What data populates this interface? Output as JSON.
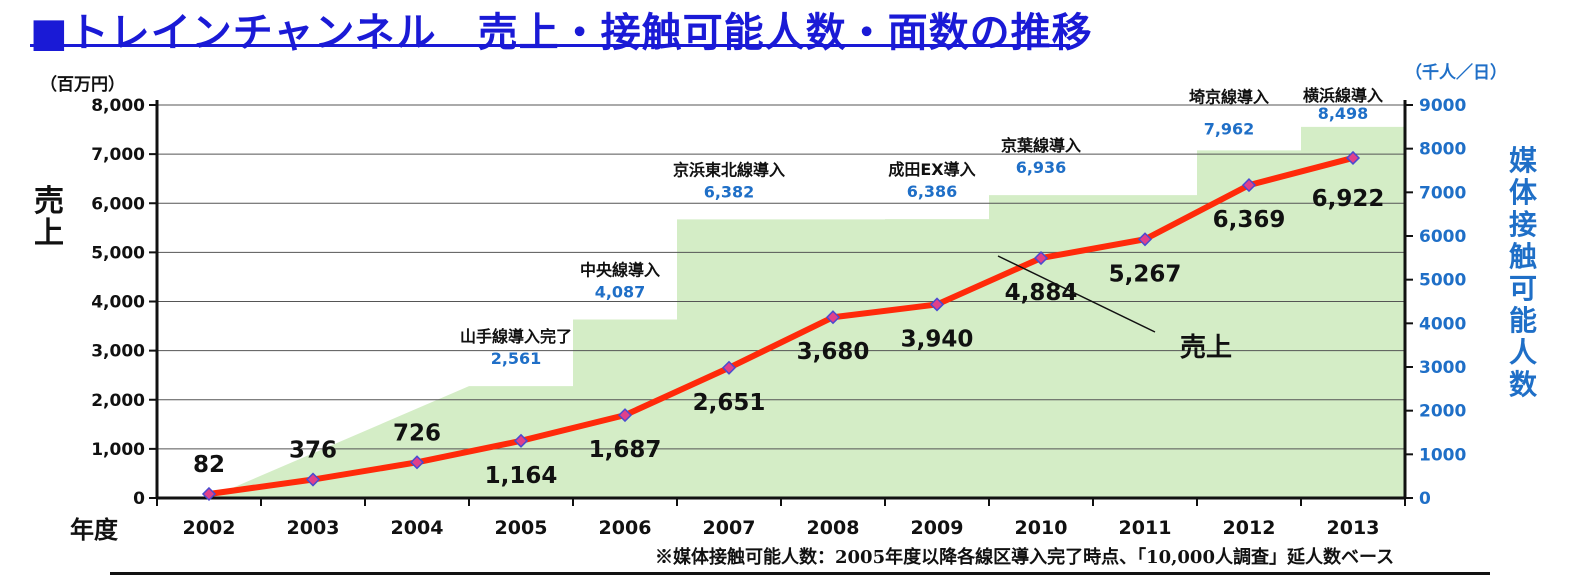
{
  "title": "■トレインチャンネル　売上・接触可能人数・面数の推移",
  "left_axis_unit": "（百万円）",
  "right_axis_unit": "（千人／日）",
  "left_axis_label": "売上",
  "right_axis_label": "媒体接触可能人数",
  "x_axis_label": "年度",
  "footnote": "※媒体接触可能人数：2005年度以降各線区導入完了時点、「10,000人調査」延人数ベース",
  "colors": {
    "sales_line": "#ff2a0a",
    "marker_fill": "#e0408a",
    "marker_stroke": "#4a4ad0",
    "area_fill": "#d4edc6",
    "contact_label": "#1f6fc7",
    "title": "#1a1ad6"
  },
  "chart_data": {
    "type": "line",
    "categories": [
      "2002",
      "2003",
      "2004",
      "2005",
      "2006",
      "2007",
      "2008",
      "2009",
      "2010",
      "2011",
      "2012",
      "2013"
    ],
    "series": [
      {
        "name": "売上",
        "type": "line",
        "axis": "left",
        "values": [
          82,
          376,
          726,
          1164,
          1687,
          2651,
          3680,
          3940,
          4884,
          5267,
          6369,
          6922
        ],
        "labels": [
          "82",
          "376",
          "726",
          "1,164",
          "1,687",
          "2,651",
          "3,680",
          "3,940",
          "4,884",
          "5,267",
          "6,369",
          "6,922"
        ]
      },
      {
        "type": "area",
        "axis": "right",
        "values": [
          0,
          1300,
          2400,
          2561,
          4087,
          6382,
          6382,
          6386,
          6936,
          6936,
          7962,
          8498
        ]
      }
    ],
    "left_axis": {
      "min": 0,
      "max": 8000,
      "ticks": [
        "0",
        "1,000",
        "2,000",
        "3,000",
        "4,000",
        "5,000",
        "6,000",
        "7,000",
        "8,000"
      ]
    },
    "right_axis": {
      "min": 0,
      "max": 9000,
      "ticks": [
        "0",
        "1000",
        "2000",
        "3000",
        "4000",
        "5000",
        "6000",
        "7000",
        "8000",
        "9000"
      ]
    },
    "annotations": [
      {
        "index": 3,
        "text": "山手線導入完了",
        "value_text": "2,561"
      },
      {
        "index": 4,
        "text": "中央線導入",
        "value_text": "4,087"
      },
      {
        "index": 5,
        "text": "京浜東北線導入",
        "value_text": "6,382"
      },
      {
        "index": 7,
        "text": "成田EX導入",
        "value_text": "6,386"
      },
      {
        "index": 8,
        "text": "京葉線導入",
        "value_text": "6,936"
      },
      {
        "index": 10,
        "text": "埼京線導入",
        "value_text": "7,962"
      },
      {
        "index": 11,
        "text": "横浜線導入",
        "value_text": "8,498"
      }
    ],
    "series_callout": "売上"
  }
}
